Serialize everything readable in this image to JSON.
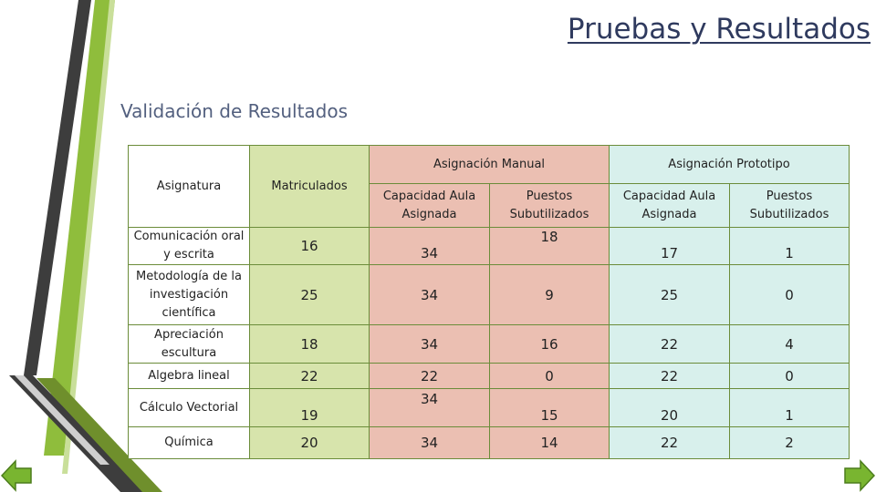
{
  "slide": {
    "title": "Pruebas y Resultados",
    "subtitle": "Validación de Resultados"
  },
  "table": {
    "headers": {
      "asignatura": "Asignatura",
      "matriculados": "Matriculados",
      "manual": "Asignación Manual",
      "prototipo": "Asignación Prototipo",
      "capacidad": "Capacidad Aula Asignada",
      "puestos": "Puestos Subutilizados"
    },
    "rows": [
      {
        "asignatura": "Comunicación oral y escrita",
        "matriculados": "16",
        "cap_manual": "34",
        "puestos_manual": "18",
        "cap_proto": "17",
        "puestos_proto": "1"
      },
      {
        "asignatura": "Metodología de la investigación científica",
        "matriculados": "25",
        "cap_manual": "34",
        "puestos_manual": "9",
        "cap_proto": "25",
        "puestos_proto": "0"
      },
      {
        "asignatura": "Apreciación escultura",
        "matriculados": "18",
        "cap_manual": "34",
        "puestos_manual": "16",
        "cap_proto": "22",
        "puestos_proto": "4"
      },
      {
        "asignatura": "Algebra lineal",
        "matriculados": "22",
        "cap_manual": "22",
        "puestos_manual": "0",
        "cap_proto": "22",
        "puestos_proto": "0"
      },
      {
        "asignatura": "Cálculo Vectorial",
        "matriculados": "19",
        "cap_manual": "34",
        "puestos_manual": "15",
        "cap_proto": "20",
        "puestos_proto": "1"
      },
      {
        "asignatura": "Química",
        "matriculados": "20",
        "cap_manual": "34",
        "puestos_manual": "14",
        "cap_proto": "22",
        "puestos_proto": "2"
      }
    ]
  },
  "nav": {
    "prev_icon": "arrow-left-icon",
    "next_icon": "arrow-right-icon",
    "color": "#79b530"
  }
}
